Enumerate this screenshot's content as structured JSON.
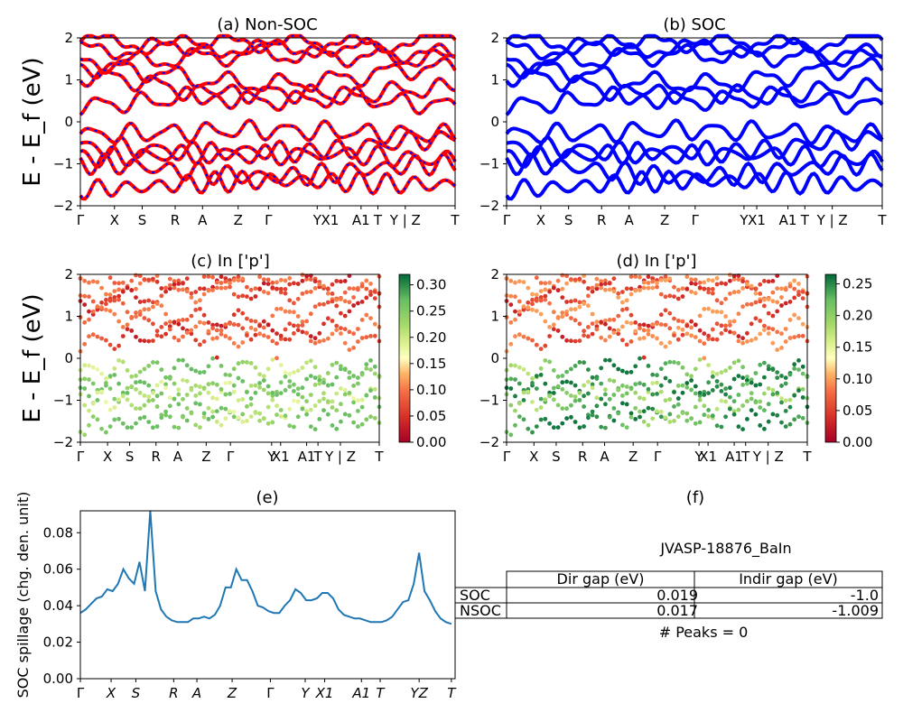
{
  "chart_data": [
    {
      "id": "a",
      "type": "line",
      "title": "(a) Non-SOC",
      "ylabel": "E - E_f (eV)",
      "ylim": [
        -2,
        2
      ],
      "yticks": [
        "2",
        "1",
        "0",
        "−1",
        "−2"
      ],
      "kpath": [
        "Γ",
        "X",
        "S",
        "R",
        "A",
        "Z",
        "Γ",
        "Y",
        "X1",
        "A1",
        "T",
        "Y | Z",
        "T"
      ],
      "series": [
        {
          "values": [
            1.9,
            1.75,
            1.95
          ]
        },
        {
          "values": [
            1.7,
            1.9,
            1.6
          ]
        },
        {
          "values": [
            1.4,
            1.6,
            1.5
          ]
        },
        {
          "values": [
            1.3,
            0.9,
            1.3
          ]
        },
        {
          "values": [
            1.1,
            0.5,
            0.8
          ]
        },
        {
          "values": [
            0.4,
            0.7,
            0.4
          ]
        },
        {
          "values": [
            -0.3,
            -0.2,
            -0.3
          ]
        },
        {
          "values": [
            -0.6,
            -0.8,
            -0.4
          ]
        },
        {
          "values": [
            -0.85,
            -0.7,
            -0.9
          ]
        },
        {
          "values": [
            -1.0,
            -1.3,
            -1.0
          ]
        },
        {
          "values": [
            -1.6,
            -1.4,
            -1.5
          ]
        }
      ],
      "series_colors": [
        "#ff0000",
        "#0000ff"
      ]
    },
    {
      "id": "b",
      "type": "line",
      "title": "(b) SOC",
      "ylim": [
        -2,
        2
      ],
      "yticks": [
        "2",
        "1",
        "0",
        "−1",
        "−2"
      ],
      "kpath": [
        "Γ",
        "X",
        "S",
        "R",
        "A",
        "Z",
        "Γ",
        "Y",
        "X1",
        "A1",
        "T",
        "Y | Z",
        "T"
      ],
      "series": [
        {
          "values": [
            1.9,
            1.75,
            1.95
          ]
        },
        {
          "values": [
            1.7,
            1.9,
            1.6
          ]
        },
        {
          "values": [
            1.4,
            1.6,
            1.5
          ]
        },
        {
          "values": [
            1.3,
            0.9,
            1.3
          ]
        },
        {
          "values": [
            1.1,
            0.5,
            0.8
          ]
        },
        {
          "values": [
            0.4,
            0.7,
            0.4
          ]
        },
        {
          "values": [
            -0.3,
            -0.2,
            -0.3
          ]
        },
        {
          "values": [
            -0.6,
            -0.8,
            -0.4
          ]
        },
        {
          "values": [
            -0.85,
            -0.7,
            -0.9
          ]
        },
        {
          "values": [
            -1.0,
            -1.3,
            -1.0
          ]
        },
        {
          "values": [
            -1.6,
            -1.4,
            -1.5
          ]
        }
      ],
      "series_colors": [
        "#0000ff"
      ]
    },
    {
      "id": "c",
      "type": "scatter",
      "title": "(c)  In ['p']",
      "ylabel": "E - E_f (eV)",
      "ylim": [
        -2,
        2
      ],
      "yticks": [
        "2",
        "1",
        "0",
        "−1",
        "−2"
      ],
      "kpath": [
        "Γ",
        "X",
        "S",
        "R",
        "A",
        "Z",
        "Γ",
        "Y",
        "X1",
        "A1",
        "T",
        "Y | Z",
        "T"
      ],
      "colorbar": {
        "ticks": [
          "0.30",
          "0.25",
          "0.20",
          "0.15",
          "0.10",
          "0.05",
          "0.00"
        ],
        "range": [
          0,
          0.32
        ],
        "colormap": "RdYlGn"
      }
    },
    {
      "id": "d",
      "type": "scatter",
      "title": "(d) In ['p']",
      "ylim": [
        -2,
        2
      ],
      "yticks": [
        "2",
        "1",
        "0",
        "−1",
        "−2"
      ],
      "kpath": [
        "Γ",
        "X",
        "S",
        "R",
        "A",
        "Z",
        "Γ",
        "Y",
        "X1",
        "A1",
        "T",
        "Y | Z",
        "T"
      ],
      "colorbar": {
        "ticks": [
          "0.25",
          "0.20",
          "0.15",
          "0.10",
          "0.05",
          "0.00"
        ],
        "range": [
          0,
          0.265
        ],
        "colormap": "RdYlGn"
      }
    },
    {
      "id": "e",
      "type": "line",
      "title": "(e)",
      "ylabel": "SOC spillage (chg. den. unit)",
      "ylim": [
        0,
        0.092
      ],
      "yticks": [
        "0.00",
        "0.02",
        "0.04",
        "0.06",
        "0.08"
      ],
      "kpath": [
        "Γ",
        "X",
        "S",
        "R",
        "A",
        "Z",
        "Γ",
        "Y",
        "X1",
        "A1",
        "T",
        "YZ",
        "T"
      ],
      "series": [
        {
          "values": [
            0.036,
            0.038,
            0.041,
            0.044,
            0.045,
            0.049,
            0.048,
            0.052,
            0.06,
            0.055,
            0.052,
            0.064,
            0.048,
            0.093,
            0.048,
            0.038,
            0.034,
            0.032,
            0.031,
            0.031,
            0.031,
            0.033,
            0.033,
            0.034,
            0.033,
            0.035,
            0.04,
            0.05,
            0.05,
            0.06,
            0.054,
            0.054,
            0.048,
            0.04,
            0.039,
            0.037,
            0.036,
            0.036,
            0.04,
            0.043,
            0.049,
            0.047,
            0.043,
            0.043,
            0.044,
            0.047,
            0.047,
            0.044,
            0.038,
            0.035,
            0.034,
            0.033,
            0.033,
            0.032,
            0.031,
            0.031,
            0.031,
            0.032,
            0.034,
            0.038,
            0.042,
            0.043,
            0.052,
            0.069,
            0.048,
            0.043,
            0.037,
            0.033,
            0.031,
            0.03
          ]
        }
      ]
    }
  ],
  "table": {
    "title": "(f)",
    "material": "JVASP-18876_BaIn",
    "headers": [
      "",
      "Dir gap (eV)",
      "Indir gap (eV)"
    ],
    "rows": [
      [
        "SOC",
        "0.019",
        "-1.0"
      ],
      [
        "NSOC",
        "0.017",
        "-1.009"
      ]
    ],
    "peaks": "# Peaks = 0"
  }
}
